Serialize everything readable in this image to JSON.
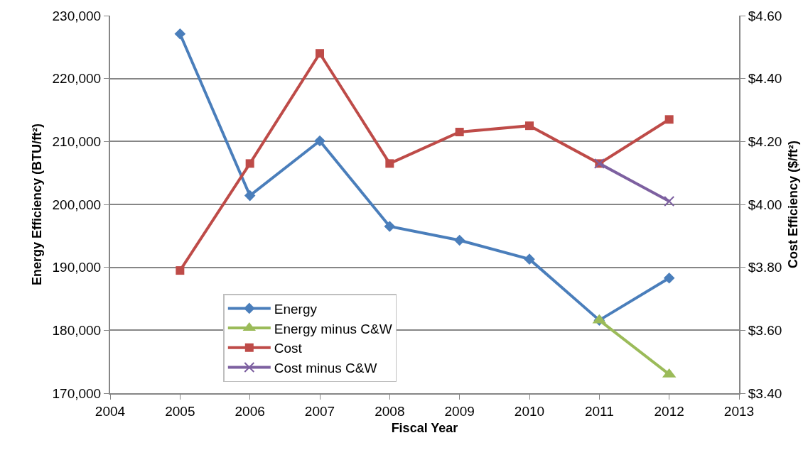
{
  "chart_data": {
    "type": "line",
    "xlabel": "Fiscal Year",
    "ylabel": "Energy Efficiency (BTU/ft²)",
    "y2label": "Cost Efficiency ($/ft²)",
    "x": [
      2005,
      2006,
      2007,
      2008,
      2009,
      2010,
      2011,
      2012
    ],
    "series": [
      {
        "name": "Energy",
        "color": "#4a7ebb",
        "marker": "diamond",
        "values": [
          227100,
          201400,
          210100,
          196500,
          194300,
          191300,
          181600,
          188300
        ]
      },
      {
        "name": "Energy minus C&W",
        "color": "#9bbb59",
        "marker": "triangle",
        "values": [
          null,
          null,
          null,
          null,
          null,
          null,
          181600,
          173000
        ]
      },
      {
        "name": "Cost",
        "color": "#be4b48",
        "marker": "square",
        "axis": "y2",
        "values": [
          3.79,
          4.13,
          4.48,
          4.13,
          4.23,
          4.25,
          4.13,
          4.27
        ]
      },
      {
        "name": "Cost minus C&W",
        "color": "#7d60a0",
        "marker": "cross",
        "axis": "y2",
        "values": [
          null,
          null,
          null,
          null,
          null,
          null,
          4.13,
          4.01
        ]
      }
    ],
    "xlim": [
      2004,
      2013
    ],
    "xticks": [
      2004,
      2005,
      2006,
      2007,
      2008,
      2009,
      2010,
      2011,
      2012,
      2013
    ],
    "ylim": [
      170000,
      230000
    ],
    "yticks": [
      {
        "value": 170000,
        "label": "170,000"
      },
      {
        "value": 180000,
        "label": "180,000"
      },
      {
        "value": 190000,
        "label": "190,000"
      },
      {
        "value": 200000,
        "label": "200,000"
      },
      {
        "value": 210000,
        "label": "210,000"
      },
      {
        "value": 220000,
        "label": "220,000"
      },
      {
        "value": 230000,
        "label": "230,000"
      }
    ],
    "y2lim": [
      3.4,
      4.6
    ],
    "y2ticks": [
      {
        "value": 3.4,
        "label": "$3.40"
      },
      {
        "value": 3.6,
        "label": "$3.60"
      },
      {
        "value": 3.8,
        "label": "$3.80"
      },
      {
        "value": 4.0,
        "label": "$4.00"
      },
      {
        "value": 4.2,
        "label": "$4.20"
      },
      {
        "value": 4.4,
        "label": "$4.40"
      },
      {
        "value": 4.6,
        "label": "$4.60"
      }
    ],
    "grid": "y",
    "legend": "bottom",
    "line_style": "solid"
  }
}
